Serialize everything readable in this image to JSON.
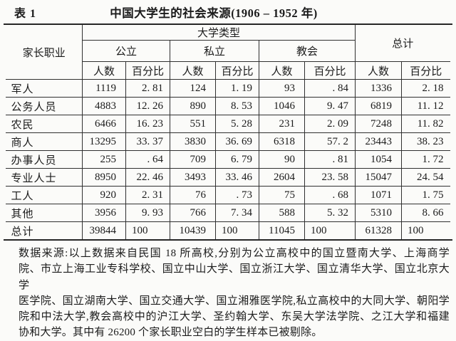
{
  "title": {
    "label": "表 1",
    "text": "中国大学生的社会来源(1906 – 1952 年)"
  },
  "table": {
    "header": {
      "occupation": "家长职业",
      "university_type": "大学类型",
      "total": "总计",
      "groups": [
        "公立",
        "私立",
        "教会"
      ],
      "sub": {
        "count": "人数",
        "percent": "百分比"
      }
    },
    "rows": [
      {
        "label": "军人",
        "values": [
          "1119",
          "2. 81",
          "124",
          "1. 19",
          "93",
          ". 84",
          "1336",
          "2. 18"
        ]
      },
      {
        "label": "公务人员",
        "values": [
          "4883",
          "12. 26",
          "890",
          "8. 53",
          "1046",
          "9. 47",
          "6819",
          "11. 12"
        ]
      },
      {
        "label": "农民",
        "values": [
          "6466",
          "16. 23",
          "551",
          "5. 28",
          "231",
          "2. 09",
          "7248",
          "11. 82"
        ]
      },
      {
        "label": "商人",
        "values": [
          "13295",
          "33. 37",
          "3830",
          "36. 69",
          "6318",
          "57. 2",
          "23443",
          "38. 23"
        ]
      },
      {
        "label": "办事人员",
        "values": [
          "255",
          ". 64",
          "709",
          "6. 79",
          "90",
          ". 81",
          "1054",
          "1. 72"
        ]
      },
      {
        "label": "专业人士",
        "values": [
          "8950",
          "22. 46",
          "3493",
          "33. 46",
          "2604",
          "23. 58",
          "15047",
          "24. 54"
        ]
      },
      {
        "label": "工人",
        "values": [
          "920",
          "2. 31",
          "76",
          ". 73",
          "75",
          ". 68",
          "1071",
          "1. 75"
        ]
      },
      {
        "label": "其他",
        "values": [
          "3956",
          "9. 93",
          "766",
          "7. 34",
          "588",
          "5. 32",
          "5310",
          "8. 66"
        ]
      },
      {
        "label": "总计",
        "values": [
          "39844",
          "100",
          "10439",
          "100",
          "11045",
          "100",
          "61328",
          "100"
        ]
      }
    ]
  },
  "footnote": {
    "lines": [
      "数据来源:以上数据来自民国 18 所高校,分别为公立高校中的国立暨南大学、上海商学",
      "院、市立上海工业专科学校、国立中山大学、国立浙江大学、国立清华大学、国立北京大学",
      "医学院、国立湖南大学、国立交通大学、国立湘雅医学院,私立高校中的大同大学、朝阳学",
      "院和中法大学,教会高校中的沪江大学、圣约翰大学、东吴大学法学院、之江大学和福建",
      "协和大学。其中有 26200 个家长职业空白的学生样本已被剔除。"
    ]
  },
  "chart_data": {
    "type": "table",
    "title": "中国大学生的社会来源(1906 – 1952 年)",
    "row_header": "家长职业",
    "columns": [
      "公立 人数",
      "公立 百分比",
      "私立 人数",
      "私立 百分比",
      "教会 人数",
      "教会 百分比",
      "总计 人数",
      "总计 百分比"
    ],
    "rows": [
      {
        "occupation": "军人",
        "values": [
          1119,
          2.81,
          124,
          1.19,
          93,
          0.84,
          1336,
          2.18
        ]
      },
      {
        "occupation": "公务人员",
        "values": [
          4883,
          12.26,
          890,
          8.53,
          1046,
          9.47,
          6819,
          11.12
        ]
      },
      {
        "occupation": "农民",
        "values": [
          6466,
          16.23,
          551,
          5.28,
          231,
          2.09,
          7248,
          11.82
        ]
      },
      {
        "occupation": "商人",
        "values": [
          13295,
          33.37,
          3830,
          36.69,
          6318,
          57.2,
          23443,
          38.23
        ]
      },
      {
        "occupation": "办事人员",
        "values": [
          255,
          0.64,
          709,
          6.79,
          90,
          0.81,
          1054,
          1.72
        ]
      },
      {
        "occupation": "专业人士",
        "values": [
          8950,
          22.46,
          3493,
          33.46,
          2604,
          23.58,
          15047,
          24.54
        ]
      },
      {
        "occupation": "工人",
        "values": [
          920,
          2.31,
          76,
          0.73,
          75,
          0.68,
          1071,
          1.75
        ]
      },
      {
        "occupation": "其他",
        "values": [
          3956,
          9.93,
          766,
          7.34,
          588,
          5.32,
          5310,
          8.66
        ]
      },
      {
        "occupation": "总计",
        "values": [
          39844,
          100,
          10439,
          100,
          11045,
          100,
          61328,
          100
        ]
      }
    ]
  }
}
